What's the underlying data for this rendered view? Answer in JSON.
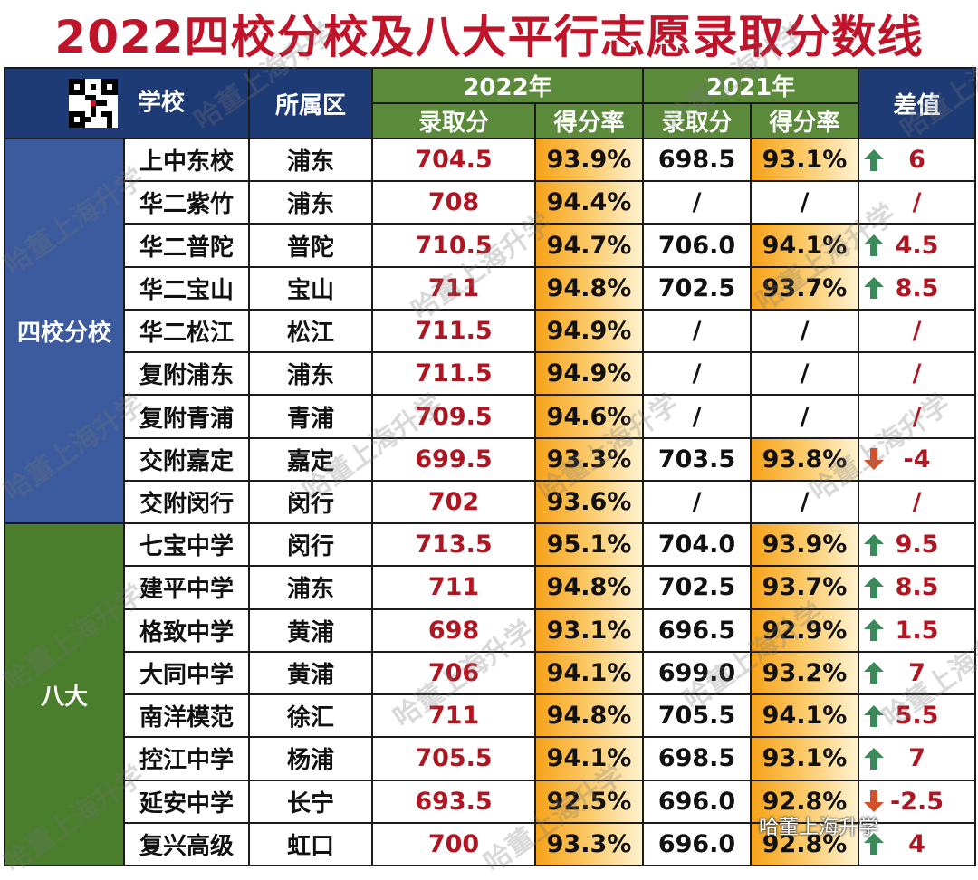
{
  "title": "2022四校分校及八大平行志愿录取分数线",
  "header": {
    "school": "学校",
    "district": "所属区",
    "year2022": "2022年",
    "year2021": "2021年",
    "score": "录取分",
    "rate": "得分率",
    "diff": "差值"
  },
  "groups": [
    {
      "label": "四校分校",
      "color": "#3b5b9e"
    },
    {
      "label": "八大",
      "color": "#4a7d2c"
    }
  ],
  "rows": [
    {
      "school": "上中东校",
      "district": "浦东",
      "score2022": "704.5",
      "rate2022": "93.9%",
      "score2021": "698.5",
      "rate2021": "93.1%",
      "trend": "up",
      "diff": "6"
    },
    {
      "school": "华二紫竹",
      "district": "浦东",
      "score2022": "708",
      "rate2022": "94.4%",
      "score2021": "/",
      "rate2021": "/",
      "trend": "none",
      "diff": "/"
    },
    {
      "school": "华二普陀",
      "district": "普陀",
      "score2022": "710.5",
      "rate2022": "94.7%",
      "score2021": "706.0",
      "rate2021": "94.1%",
      "trend": "up",
      "diff": "4.5"
    },
    {
      "school": "华二宝山",
      "district": "宝山",
      "score2022": "711",
      "rate2022": "94.8%",
      "score2021": "702.5",
      "rate2021": "93.7%",
      "trend": "up",
      "diff": "8.5"
    },
    {
      "school": "华二松江",
      "district": "松江",
      "score2022": "711.5",
      "rate2022": "94.9%",
      "score2021": "/",
      "rate2021": "/",
      "trend": "none",
      "diff": "/"
    },
    {
      "school": "复附浦东",
      "district": "浦东",
      "score2022": "711.5",
      "rate2022": "94.9%",
      "score2021": "/",
      "rate2021": "/",
      "trend": "none",
      "diff": "/"
    },
    {
      "school": "复附青浦",
      "district": "青浦",
      "score2022": "709.5",
      "rate2022": "94.6%",
      "score2021": "/",
      "rate2021": "/",
      "trend": "none",
      "diff": "/"
    },
    {
      "school": "交附嘉定",
      "district": "嘉定",
      "score2022": "699.5",
      "rate2022": "93.3%",
      "score2021": "703.5",
      "rate2021": "93.8%",
      "trend": "down",
      "diff": "-4"
    },
    {
      "school": "交附闵行",
      "district": "闵行",
      "score2022": "702",
      "rate2022": "93.6%",
      "score2021": "/",
      "rate2021": "/",
      "trend": "none",
      "diff": "/"
    },
    {
      "school": "七宝中学",
      "district": "闵行",
      "score2022": "713.5",
      "rate2022": "95.1%",
      "score2021": "704.0",
      "rate2021": "93.9%",
      "trend": "up",
      "diff": "9.5"
    },
    {
      "school": "建平中学",
      "district": "浦东",
      "score2022": "711",
      "rate2022": "94.8%",
      "score2021": "702.5",
      "rate2021": "93.7%",
      "trend": "up",
      "diff": "8.5"
    },
    {
      "school": "格致中学",
      "district": "黄浦",
      "score2022": "698",
      "rate2022": "93.1%",
      "score2021": "696.5",
      "rate2021": "92.9%",
      "trend": "up",
      "diff": "1.5"
    },
    {
      "school": "大同中学",
      "district": "黄浦",
      "score2022": "706",
      "rate2022": "94.1%",
      "score2021": "699.0",
      "rate2021": "93.2%",
      "trend": "up",
      "diff": "7"
    },
    {
      "school": "南洋模范",
      "district": "徐汇",
      "score2022": "711",
      "rate2022": "94.8%",
      "score2021": "705.5",
      "rate2021": "94.1%",
      "trend": "up",
      "diff": "5.5"
    },
    {
      "school": "控江中学",
      "district": "杨浦",
      "score2022": "705.5",
      "rate2022": "94.1%",
      "score2021": "698.5",
      "rate2021": "93.1%",
      "trend": "up",
      "diff": "7"
    },
    {
      "school": "延安中学",
      "district": "长宁",
      "score2022": "693.5",
      "rate2022": "92.5%",
      "score2021": "696.0",
      "rate2021": "92.8%",
      "trend": "down",
      "diff": "-2.5"
    },
    {
      "school": "复兴高级",
      "district": "虹口",
      "score2022": "700",
      "rate2022": "93.3%",
      "score2021": "696.0",
      "rate2021": "92.8%",
      "trend": "up",
      "diff": "4"
    }
  ],
  "watermark": "哈董上海升学",
  "footer_mark": "哈董上海升学",
  "colors": {
    "title": "#c0142a",
    "navy": "#1f3b76",
    "green": "#5b8a3a",
    "up": "#3a8a5a",
    "down": "#d4502a"
  }
}
